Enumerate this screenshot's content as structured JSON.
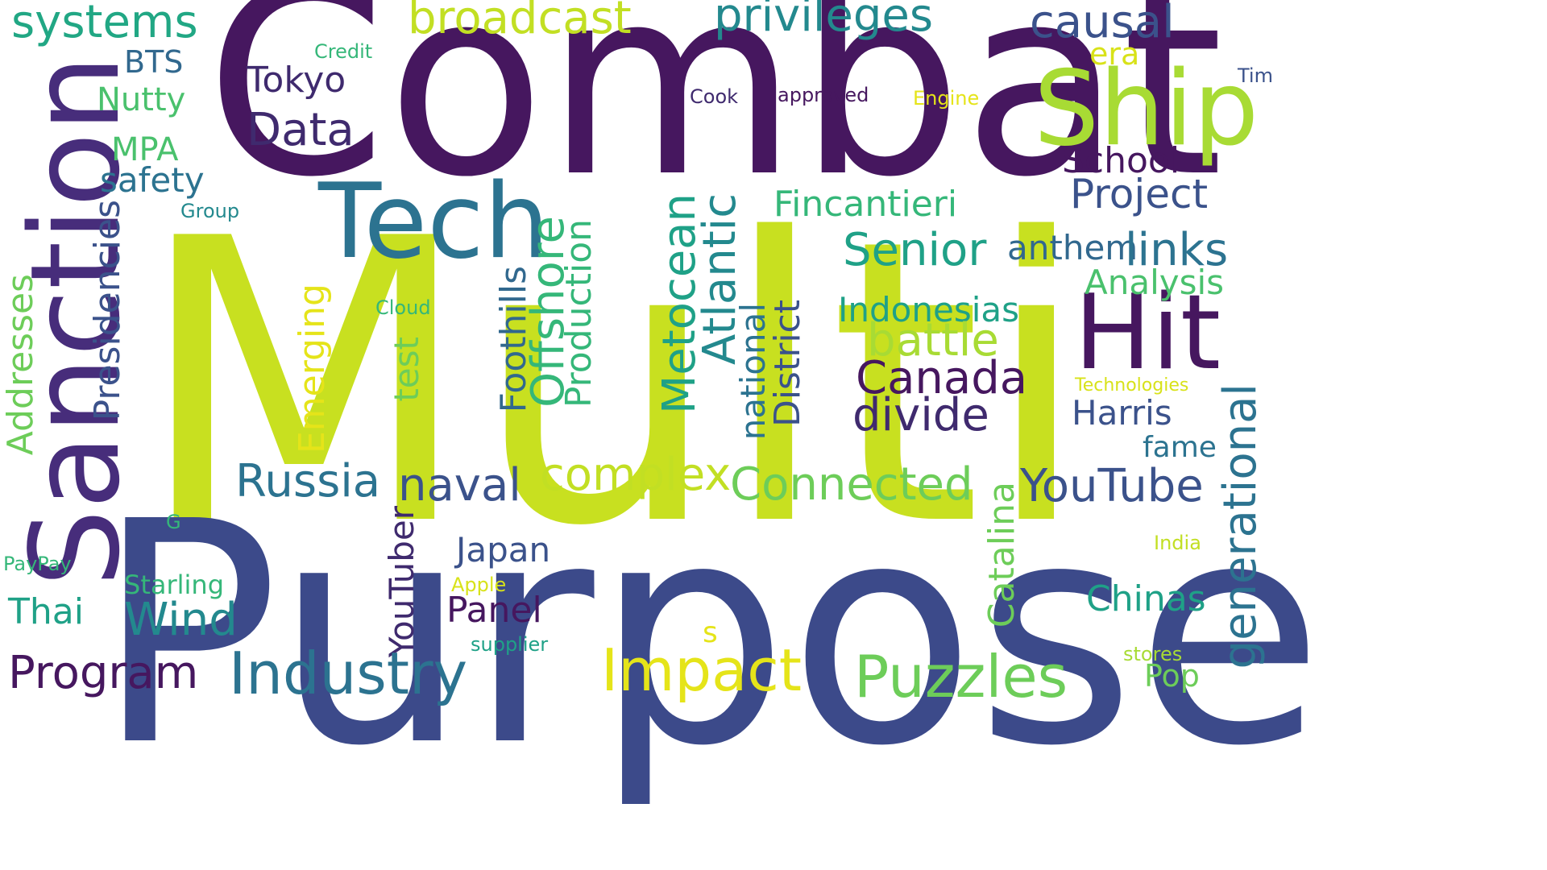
{
  "colors": {
    "background": "#ffffff",
    "dark_purple": "#46175f",
    "purple": "#3f2a6e",
    "indigo": "#3c4a8a",
    "blue": "#385a8c",
    "teal_blue": "#2c7390",
    "teal": "#23898e",
    "green_teal": "#1fa187",
    "green": "#35b779",
    "light_green": "#6dcd59",
    "lime": "#b8de29",
    "yellow_green": "#c8e020",
    "yellow": "#e5e419"
  },
  "words": [
    {
      "id": "multi",
      "text": "Multi"
    },
    {
      "id": "purpose",
      "text": "Purpose"
    },
    {
      "id": "combat",
      "text": "Combat"
    },
    {
      "id": "sanction",
      "text": "Sanction"
    },
    {
      "id": "tech",
      "text": "Tech"
    },
    {
      "id": "ship",
      "text": "Ship"
    },
    {
      "id": "hit",
      "text": "Hit"
    },
    {
      "id": "systems",
      "text": "systems"
    },
    {
      "id": "broadcast",
      "text": "broadcast"
    },
    {
      "id": "privileges",
      "text": "privileges"
    },
    {
      "id": "causal",
      "text": "causal"
    },
    {
      "id": "bts",
      "text": "BTS"
    },
    {
      "id": "credit",
      "text": "Credit"
    },
    {
      "id": "era",
      "text": "era"
    },
    {
      "id": "tokyo",
      "text": "Tokyo"
    },
    {
      "id": "tim",
      "text": "Tim"
    },
    {
      "id": "nutty",
      "text": "Nutty"
    },
    {
      "id": "cook",
      "text": "Cook"
    },
    {
      "id": "approved",
      "text": "approved"
    },
    {
      "id": "engine",
      "text": "Engine"
    },
    {
      "id": "data",
      "text": "Data"
    },
    {
      "id": "mpa",
      "text": "MPA"
    },
    {
      "id": "school",
      "text": "School"
    },
    {
      "id": "safety",
      "text": "safety"
    },
    {
      "id": "project",
      "text": "Project"
    },
    {
      "id": "group",
      "text": "Group"
    },
    {
      "id": "fincantieri",
      "text": "Fincantieri"
    },
    {
      "id": "senior",
      "text": "Senior"
    },
    {
      "id": "anthem",
      "text": "anthem"
    },
    {
      "id": "links",
      "text": "links"
    },
    {
      "id": "analysis",
      "text": "Analysis"
    },
    {
      "id": "cloud",
      "text": "Cloud"
    },
    {
      "id": "indonesias",
      "text": "Indonesias"
    },
    {
      "id": "battle",
      "text": "battle"
    },
    {
      "id": "canada",
      "text": "Canada"
    },
    {
      "id": "technologies",
      "text": "Technologies"
    },
    {
      "id": "divide",
      "text": "divide"
    },
    {
      "id": "harris",
      "text": "Harris"
    },
    {
      "id": "fame",
      "text": "fame"
    },
    {
      "id": "presidencies",
      "text": "Presidencies"
    },
    {
      "id": "addresses",
      "text": "Addresses"
    },
    {
      "id": "emerging",
      "text": "Emerging"
    },
    {
      "id": "test",
      "text": "test"
    },
    {
      "id": "foothills",
      "text": "Foothills"
    },
    {
      "id": "offshore",
      "text": "Offshore"
    },
    {
      "id": "production",
      "text": "Production"
    },
    {
      "id": "metocean",
      "text": "Metocean"
    },
    {
      "id": "atlantic",
      "text": "Atlantic"
    },
    {
      "id": "national",
      "text": "national"
    },
    {
      "id": "district",
      "text": "District"
    },
    {
      "id": "generational",
      "text": "generational"
    },
    {
      "id": "russia",
      "text": "Russia"
    },
    {
      "id": "naval",
      "text": "naval"
    },
    {
      "id": "complex",
      "text": "complex"
    },
    {
      "id": "connected",
      "text": "Connected"
    },
    {
      "id": "youtube",
      "text": "YouTube"
    },
    {
      "id": "catalina",
      "text": "Catalina"
    },
    {
      "id": "youtuber",
      "text": "YouTuber"
    },
    {
      "id": "g",
      "text": "G"
    },
    {
      "id": "japan",
      "text": "Japan"
    },
    {
      "id": "india",
      "text": "India"
    },
    {
      "id": "paypay",
      "text": "PayPay"
    },
    {
      "id": "starling",
      "text": "Starling"
    },
    {
      "id": "apple",
      "text": "Apple"
    },
    {
      "id": "chinas",
      "text": "Chinas"
    },
    {
      "id": "thai",
      "text": "Thai"
    },
    {
      "id": "wind",
      "text": "Wind"
    },
    {
      "id": "panel",
      "text": "Panel"
    },
    {
      "id": "s",
      "text": "s"
    },
    {
      "id": "supplier",
      "text": "supplier"
    },
    {
      "id": "stores",
      "text": "stores"
    },
    {
      "id": "pop",
      "text": "Pop"
    },
    {
      "id": "program",
      "text": "Program"
    },
    {
      "id": "industry",
      "text": "Industry"
    },
    {
      "id": "impact",
      "text": "Impact"
    },
    {
      "id": "puzzles",
      "text": "Puzzles"
    }
  ]
}
